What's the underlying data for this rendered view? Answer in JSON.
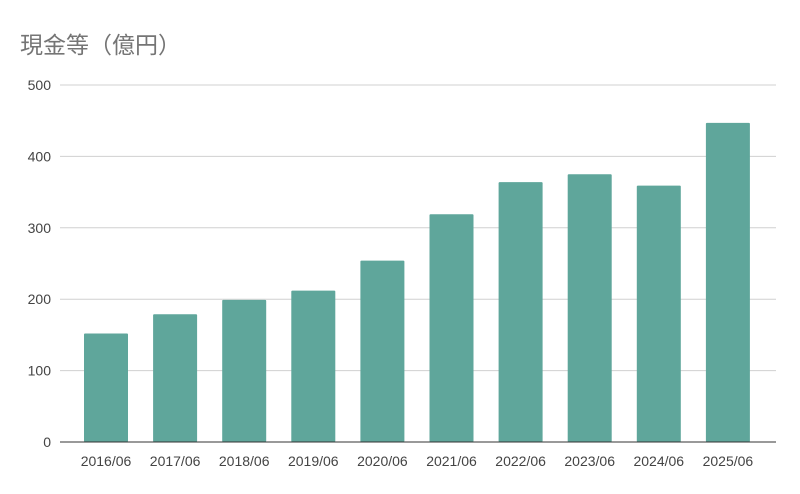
{
  "chart_data": {
    "type": "bar",
    "title": "現金等（億円）",
    "xlabel": "",
    "ylabel": "",
    "categories": [
      "2016/06",
      "2017/06",
      "2018/06",
      "2019/06",
      "2020/06",
      "2021/06",
      "2022/06",
      "2023/06",
      "2024/06",
      "2025/06"
    ],
    "values": [
      152,
      179,
      199,
      212,
      254,
      319,
      364,
      375,
      359,
      447
    ],
    "ylim": [
      0,
      500
    ],
    "yticks": [
      "0",
      "100",
      "200",
      "300",
      "400",
      "500"
    ],
    "grid": true,
    "legend": "none",
    "bar_color": "#5fa69b",
    "grid_color": "#d0d0d0",
    "axis_color": "#333333"
  }
}
